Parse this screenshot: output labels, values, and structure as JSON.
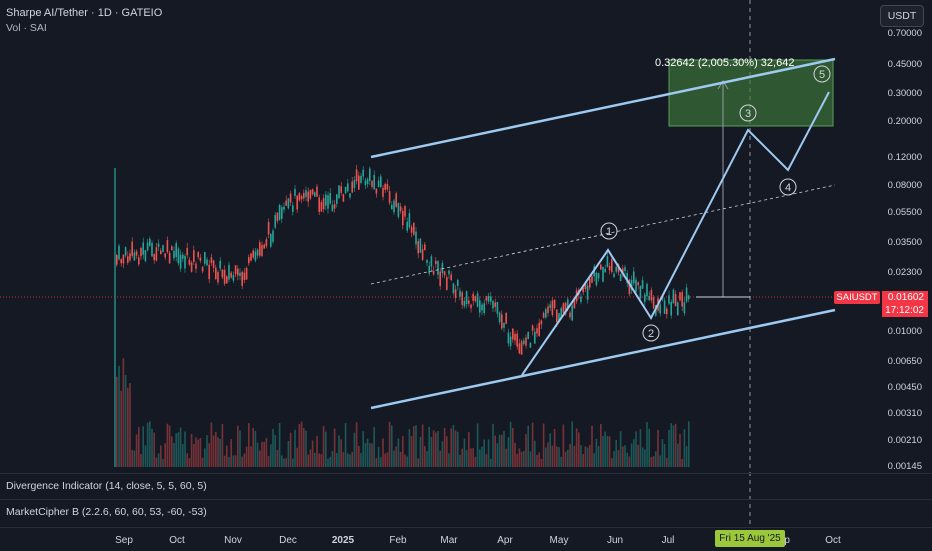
{
  "header": {
    "symbol_title": "Sharpe AI/Tether · 1D · GATEIO",
    "volume_label": "Vol · SAI",
    "currency_button": "USDT"
  },
  "price_axis": {
    "ticks": [
      "0.70000",
      "0.45000",
      "0.30000",
      "0.20000",
      "0.12000",
      "0.08000",
      "0.05500",
      "0.03500",
      "0.02300",
      "0.01000",
      "0.00650",
      "0.00450",
      "0.00310",
      "0.00210",
      "0.00145"
    ]
  },
  "current_price": {
    "symbol": "SAIUSDT",
    "price": "0.01602",
    "countdown": "17:12:02"
  },
  "measurement": {
    "text": "0.32642 (2,005.30%) 32,642"
  },
  "wave_labels": [
    "1",
    "2",
    "3",
    "4",
    "5"
  ],
  "indicators": [
    {
      "label": "Divergence Indicator (14, close, 5, 5, 60, 5)"
    },
    {
      "label": "MarketCipher B (2.2.6, 60, 60, 53, -60, -53)"
    }
  ],
  "time_axis": {
    "labels": [
      {
        "text": "Sep",
        "bold": false
      },
      {
        "text": "Oct",
        "bold": false
      },
      {
        "text": "Nov",
        "bold": false
      },
      {
        "text": "Dec",
        "bold": false
      },
      {
        "text": "2025",
        "bold": true
      },
      {
        "text": "Feb",
        "bold": false
      },
      {
        "text": "Mar",
        "bold": false
      },
      {
        "text": "Apr",
        "bold": false
      },
      {
        "text": "May",
        "bold": false
      },
      {
        "text": "Jun",
        "bold": false
      },
      {
        "text": "Jul",
        "bold": false
      },
      {
        "text": "Sep",
        "bold": false
      },
      {
        "text": "Oct",
        "bold": false
      }
    ],
    "crosshair_date": "Fri 15 Aug '25"
  },
  "colors": {
    "background": "#151924",
    "bull": "#26a69a",
    "bear": "#ef5350",
    "drawing": "#9ec9f0",
    "target_box": "#3d7a3a",
    "price_tag": "#f23645",
    "date_tag": "#9bc83a"
  }
}
